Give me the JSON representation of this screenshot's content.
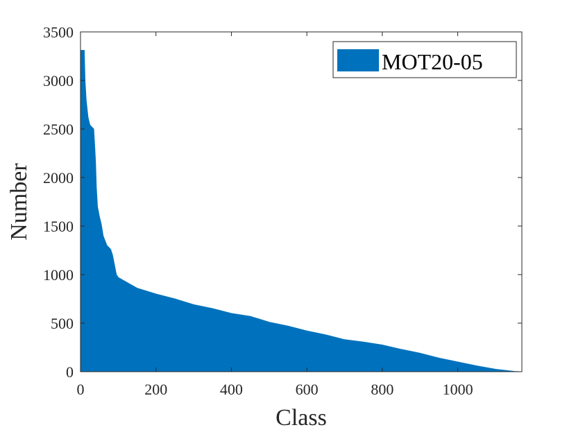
{
  "chart_data": {
    "type": "bar",
    "title": "",
    "xlabel": "Class",
    "ylabel": "Number",
    "xlim": [
      0,
      1170
    ],
    "ylim": [
      0,
      3500
    ],
    "xticks": [
      0,
      200,
      400,
      600,
      800,
      1000
    ],
    "yticks": [
      0,
      500,
      1000,
      1500,
      2000,
      2500,
      3000,
      3500
    ],
    "grid": false,
    "legend_position": "top-right",
    "series": [
      {
        "name": "MOT20-05",
        "color": "#0072BD",
        "profile": [
          [
            0,
            3310
          ],
          [
            10,
            3310
          ],
          [
            12,
            3000
          ],
          [
            15,
            2800
          ],
          [
            20,
            2620
          ],
          [
            25,
            2540
          ],
          [
            30,
            2520
          ],
          [
            35,
            2500
          ],
          [
            38,
            2300
          ],
          [
            40,
            2150
          ],
          [
            42,
            1900
          ],
          [
            45,
            1700
          ],
          [
            50,
            1600
          ],
          [
            55,
            1520
          ],
          [
            60,
            1400
          ],
          [
            70,
            1300
          ],
          [
            80,
            1260
          ],
          [
            85,
            1200
          ],
          [
            90,
            1100
          ],
          [
            95,
            1000
          ],
          [
            100,
            970
          ],
          [
            150,
            860
          ],
          [
            200,
            800
          ],
          [
            250,
            750
          ],
          [
            300,
            690
          ],
          [
            350,
            650
          ],
          [
            400,
            600
          ],
          [
            450,
            570
          ],
          [
            500,
            510
          ],
          [
            550,
            470
          ],
          [
            600,
            420
          ],
          [
            650,
            380
          ],
          [
            700,
            330
          ],
          [
            750,
            305
          ],
          [
            800,
            275
          ],
          [
            850,
            230
          ],
          [
            900,
            190
          ],
          [
            950,
            140
          ],
          [
            1000,
            100
          ],
          [
            1050,
            60
          ],
          [
            1100,
            25
          ],
          [
            1150,
            3
          ],
          [
            1165,
            0
          ]
        ]
      }
    ]
  }
}
